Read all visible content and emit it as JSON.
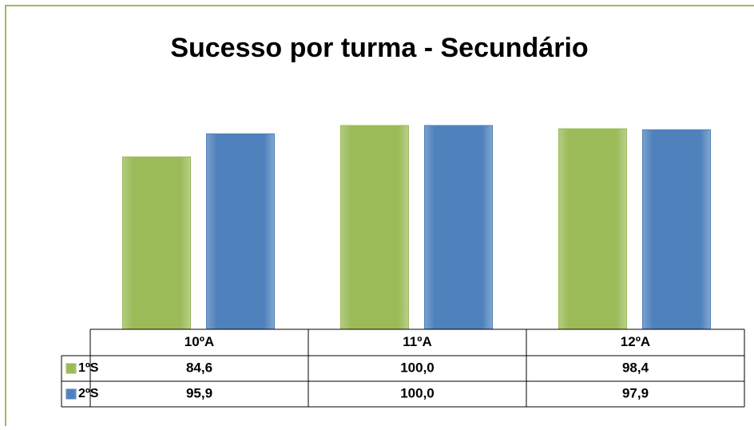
{
  "chart_data": {
    "type": "bar",
    "title": "Sucesso por turma - Secundário",
    "categories": [
      "10ºA",
      "11ºA",
      "12ºA"
    ],
    "series": [
      {
        "name": "1ºS",
        "color": "#9bbb59",
        "values": [
          84.6,
          100.0,
          98.4
        ],
        "value_labels": [
          "84,6",
          "100,0",
          "98,4"
        ]
      },
      {
        "name": "2ºS",
        "color": "#4f81bd",
        "values": [
          95.9,
          100.0,
          97.9
        ],
        "value_labels": [
          "95,9",
          "100,0",
          "97,9"
        ]
      }
    ]
  }
}
